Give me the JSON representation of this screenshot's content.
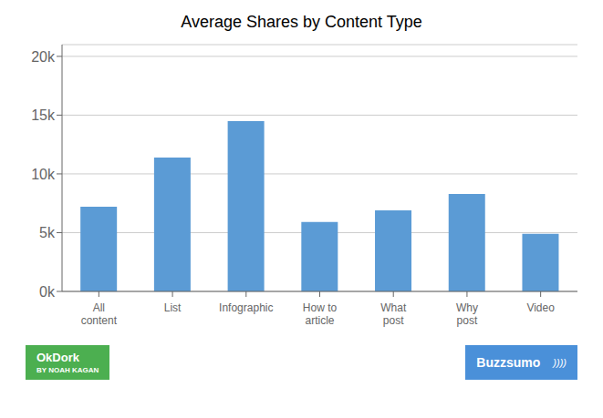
{
  "chart_data": {
    "type": "bar",
    "title": "Average Shares by Content Type",
    "categories": [
      "All\ncontent",
      "List",
      "Infographic",
      "How to\narticle",
      "What\npost",
      "Why\npost",
      "Video"
    ],
    "values": [
      7200,
      11400,
      14500,
      5900,
      6900,
      8300,
      4900
    ],
    "color": "#5b9bd5",
    "ylim": [
      0,
      21000
    ],
    "yticks": [
      {
        "value": 0,
        "label": "0k"
      },
      {
        "value": 5000,
        "label": "5k"
      },
      {
        "value": 10000,
        "label": "10k"
      },
      {
        "value": 15000,
        "label": "15k"
      },
      {
        "value": 20000,
        "label": "20k"
      }
    ],
    "grid": true,
    "annotations": [
      {
        "text": [
          "OkDork",
          "BY NOAH KAGAN"
        ],
        "color": "#4CAF50"
      },
      {
        "text": [
          "Buzzsumo",
          "))))"
        ],
        "color": "#4a90d9"
      }
    ]
  }
}
